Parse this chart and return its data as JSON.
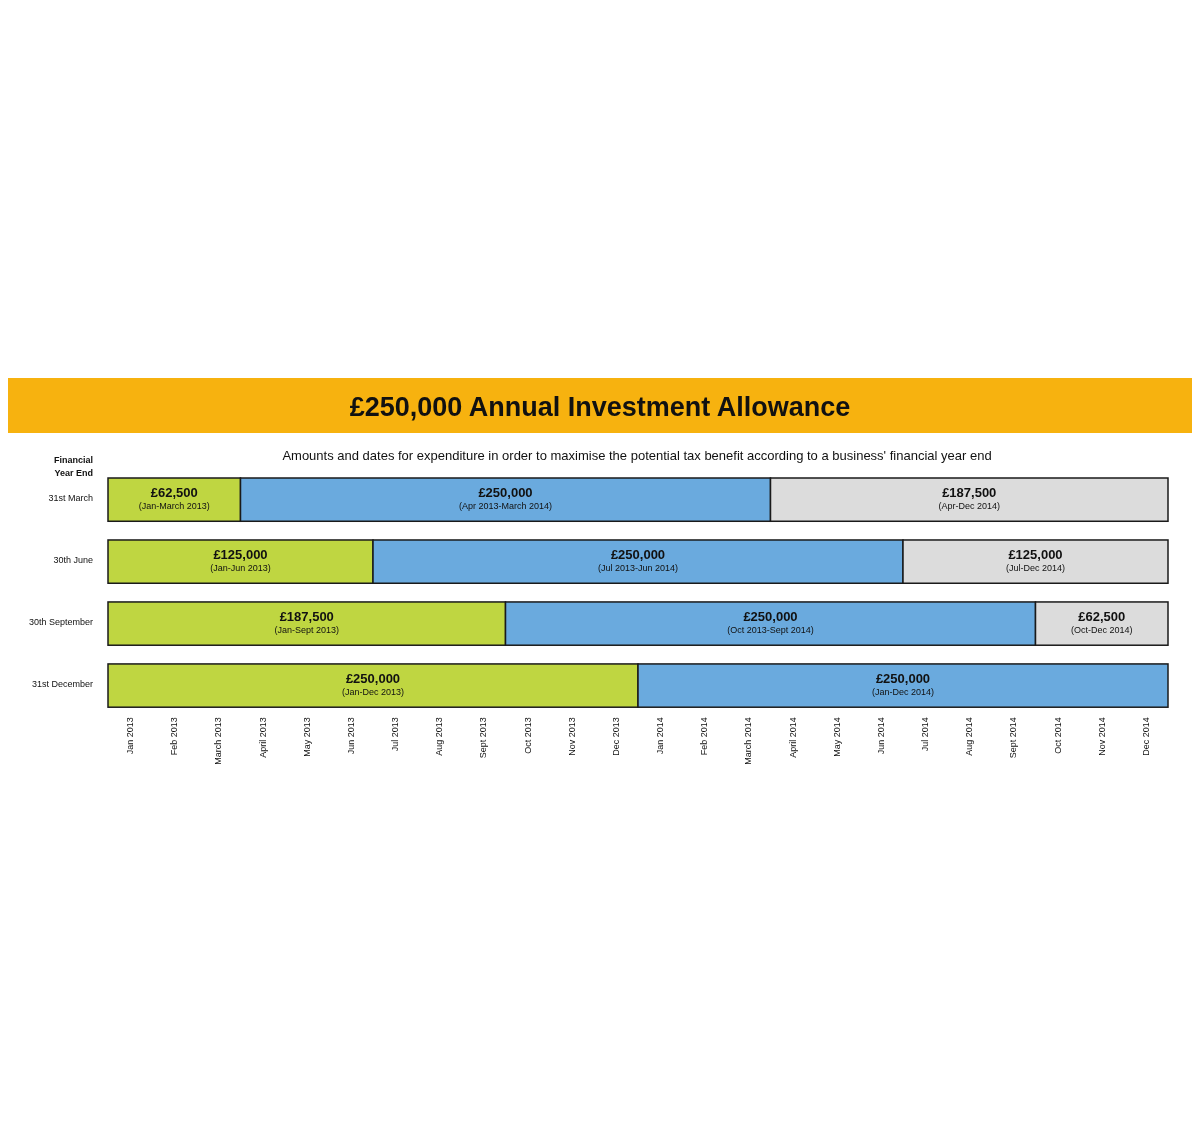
{
  "chart_data": {
    "type": "bar",
    "orientation": "horizontal",
    "stacked": true,
    "title": "£250,000 Annual Investment Allowance",
    "subtitle": "Amounts and dates for expenditure in order to maximise the potential tax benefit according to a business' financial year end",
    "ylabel": "Financial Year End",
    "categories": [
      "31st March",
      "30th June",
      "30th September",
      "31st December"
    ],
    "annotations": [
      "Jan 2013",
      "Feb 2013",
      "March 2013",
      "April 2013",
      "May 2013",
      "Jun 2013",
      "Jul 2013",
      "Aug 2013",
      "Sept 2013",
      "Oct 2013",
      "Nov 2013",
      "Dec 2013",
      "Jan 2014",
      "Feb 2014",
      "March 2014",
      "April 2014",
      "May 2014",
      "Jun 2014",
      "Jul 2014",
      "Aug 2014",
      "Sept 2014",
      "Oct 2014",
      "Nov 2014",
      "Dec 2014"
    ],
    "series": [
      {
        "color": "#bfd641",
        "values": [
          62500,
          125000,
          187500,
          250000
        ],
        "value_labels": [
          "£62,500\n(Jan-March 2013)",
          "£125,000\n(Jan-Jun 2013)",
          "£187,500\n(Jan-Sept 2013)",
          "£250,000\n(Jan-Dec 2013)"
        ]
      },
      {
        "color": "#6aaade",
        "values": [
          250000,
          250000,
          250000,
          250000
        ],
        "value_labels": [
          "£250,000\n(Apr 2013-March 2014)",
          "£250,000\n(Jul 2013-Jun 2014)",
          "£250,000\n(Oct 2013-Sept 2014)",
          "£250,000\n(Jan-Dec 2014)"
        ]
      },
      {
        "color": "#dcdcdc",
        "values": [
          187500,
          125000,
          62500,
          null
        ],
        "value_labels": [
          "£187,500\n(Apr-Dec 2014)",
          "£125,000\n(Jul-Dec 2014)",
          "£62,500\n(Oct-Dec 2014)",
          null
        ]
      }
    ]
  }
}
